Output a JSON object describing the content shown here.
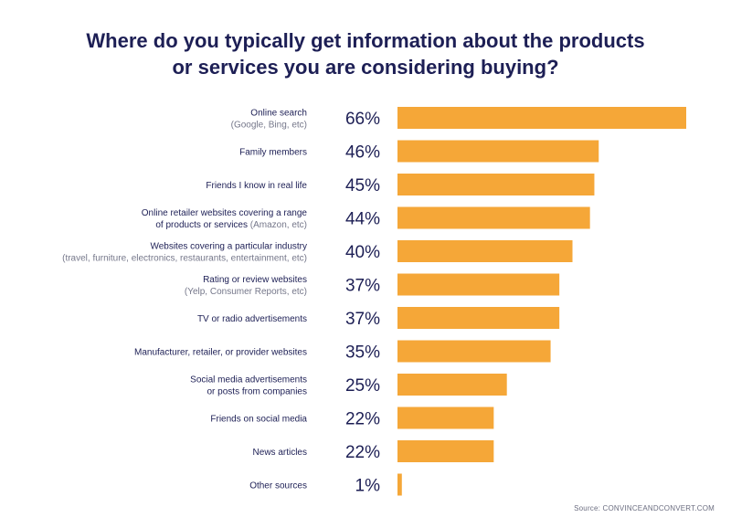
{
  "title": {
    "line1": "Where do you typically get information about the products",
    "line2": "or services you are considering buying?"
  },
  "source": "Source: CONVINCEANDCONVERT.COM",
  "colors": {
    "bar": "#f5a738",
    "text": "#1d1f55",
    "sub": "#75778a"
  },
  "chart_data": {
    "type": "bar",
    "orientation": "horizontal",
    "categories": [
      {
        "main": "Online search",
        "sub": "(Google, Bing, etc)"
      },
      {
        "main": "Family members"
      },
      {
        "main": "Friends I know in real life"
      },
      {
        "main": "Online retailer websites covering a range",
        "main2": "of products or services",
        "sub_inline": "(Amazon, etc)"
      },
      {
        "main": "Websites covering a particular industry",
        "sub": "(travel, furniture, electronics, restaurants, entertainment, etc)"
      },
      {
        "main": "Rating or review websites",
        "sub": "(Yelp, Consumer Reports, etc)"
      },
      {
        "main": "TV or radio advertisements"
      },
      {
        "main": "Manufacturer, retailer, or provider websites"
      },
      {
        "main": "Social media advertisements",
        "main2": "or posts from companies"
      },
      {
        "main": "Friends on social media"
      },
      {
        "main": "News articles"
      },
      {
        "main": "Other sources"
      }
    ],
    "values": [
      66,
      46,
      45,
      44,
      40,
      37,
      37,
      35,
      25,
      22,
      22,
      1
    ],
    "value_labels": [
      "66%",
      "46%",
      "45%",
      "44%",
      "40%",
      "37%",
      "37%",
      "35%",
      "25%",
      "22%",
      "22%",
      "1%"
    ],
    "xlim": [
      0,
      66
    ],
    "grid": false,
    "legend": "none"
  }
}
